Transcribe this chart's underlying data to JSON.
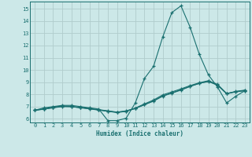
{
  "xlabel": "Humidex (Indice chaleur)",
  "xlim": [
    -0.5,
    23.5
  ],
  "ylim": [
    5.7,
    15.6
  ],
  "yticks": [
    6,
    7,
    8,
    9,
    10,
    11,
    12,
    13,
    14,
    15
  ],
  "xticks": [
    0,
    1,
    2,
    3,
    4,
    5,
    6,
    7,
    8,
    9,
    10,
    11,
    12,
    13,
    14,
    15,
    16,
    17,
    18,
    19,
    20,
    21,
    22,
    23
  ],
  "background_color": "#cce8e8",
  "grid_color": "#b0cccc",
  "line_color": "#1a7070",
  "lines": [
    {
      "x": [
        0,
        1,
        2,
        3,
        4,
        5,
        6,
        7,
        8,
        9,
        10,
        11,
        12,
        13,
        14,
        15,
        16,
        17,
        18,
        19,
        20,
        21,
        22,
        23
      ],
      "y": [
        6.7,
        6.9,
        7.0,
        7.1,
        7.1,
        7.0,
        6.9,
        6.8,
        5.85,
        5.85,
        6.05,
        7.3,
        9.3,
        10.3,
        12.7,
        14.7,
        15.25,
        13.5,
        11.3,
        9.6,
        8.6,
        7.3,
        7.85,
        8.3
      ]
    },
    {
      "x": [
        0,
        1,
        2,
        3,
        4,
        5,
        6,
        7,
        8,
        9,
        10,
        11,
        12,
        13,
        14,
        15,
        16,
        17,
        18,
        19,
        20,
        21,
        22,
        23
      ],
      "y": [
        6.7,
        6.8,
        6.9,
        7.0,
        7.0,
        6.9,
        6.85,
        6.75,
        6.65,
        6.55,
        6.65,
        6.85,
        7.15,
        7.45,
        7.85,
        8.1,
        8.35,
        8.65,
        8.9,
        9.05,
        8.75,
        8.05,
        8.25,
        8.35
      ]
    },
    {
      "x": [
        0,
        1,
        2,
        3,
        4,
        5,
        6,
        7,
        8,
        9,
        10,
        11,
        12,
        13,
        14,
        15,
        16,
        17,
        18,
        19,
        20,
        21,
        22,
        23
      ],
      "y": [
        6.7,
        6.82,
        6.95,
        7.05,
        7.02,
        6.93,
        6.83,
        6.73,
        6.63,
        6.53,
        6.63,
        6.88,
        7.22,
        7.54,
        7.96,
        8.2,
        8.45,
        8.72,
        8.95,
        9.12,
        8.82,
        8.08,
        8.22,
        8.32
      ]
    },
    {
      "x": [
        0,
        1,
        2,
        3,
        4,
        5,
        6,
        7,
        8,
        9,
        10,
        11,
        12,
        13,
        14,
        15,
        16,
        17,
        18,
        19,
        20,
        21,
        22,
        23
      ],
      "y": [
        6.7,
        6.78,
        6.92,
        7.02,
        6.99,
        6.91,
        6.81,
        6.71,
        6.61,
        6.51,
        6.61,
        6.84,
        7.16,
        7.47,
        7.88,
        8.12,
        8.38,
        8.66,
        8.9,
        9.08,
        8.78,
        8.05,
        8.2,
        8.3
      ]
    }
  ]
}
